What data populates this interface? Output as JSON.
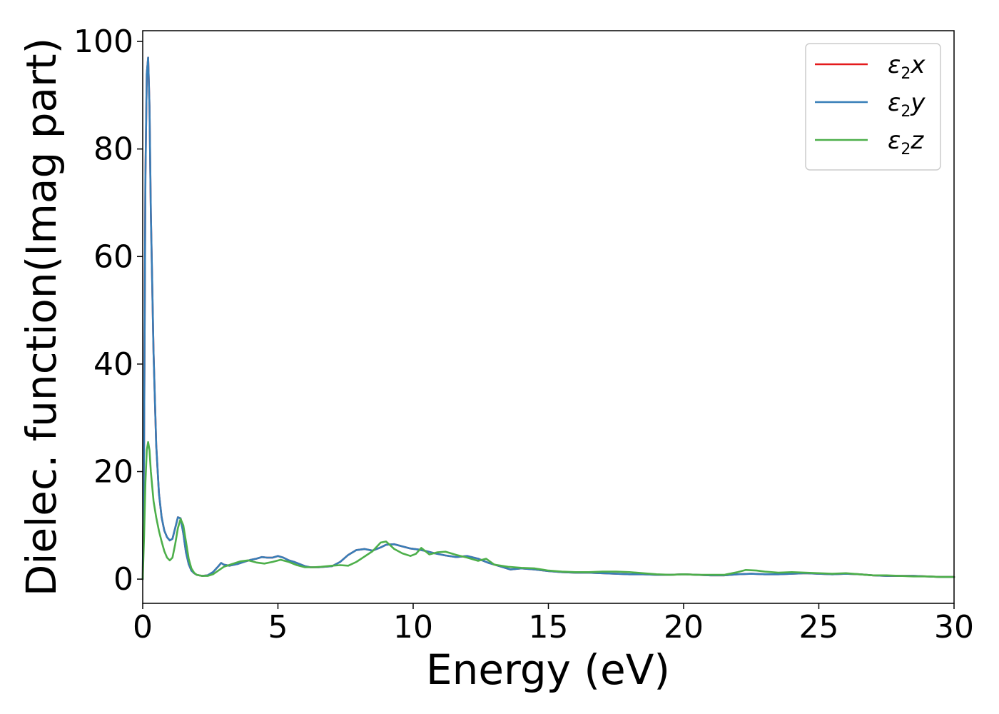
{
  "chart_data": {
    "type": "line",
    "title": "",
    "xlabel": "Energy (eV)",
    "ylabel": "Dielec. function(Imag part)",
    "xlim": [
      0,
      30
    ],
    "ylim": [
      -4.5,
      102
    ],
    "xticks": [
      0,
      5,
      10,
      15,
      20,
      25,
      30
    ],
    "yticks": [
      0,
      20,
      40,
      60,
      80,
      100
    ],
    "grid": false,
    "legend_position": "top-right",
    "series": [
      {
        "name": "ε2x",
        "legend_main": "ε",
        "legend_sub": "2",
        "legend_tail": "x",
        "color": "#e41a1c",
        "x": [
          0,
          0.05,
          0.1,
          0.15,
          0.2,
          0.25,
          0.3,
          0.4,
          0.5,
          0.6,
          0.7,
          0.8,
          0.9,
          1.0,
          1.1,
          1.2,
          1.3,
          1.4,
          1.5,
          1.6,
          1.7,
          1.8,
          1.9,
          2.0,
          2.2,
          2.4,
          2.6,
          2.8,
          2.9,
          3.0,
          3.2,
          3.5,
          3.8,
          4.0,
          4.2,
          4.4,
          4.6,
          4.8,
          5.0,
          5.2,
          5.4,
          5.6,
          5.8,
          6.0,
          6.2,
          6.5,
          7.0,
          7.3,
          7.6,
          7.9,
          8.2,
          8.5,
          8.8,
          9.0,
          9.3,
          9.6,
          9.9,
          10.2,
          10.5,
          10.8,
          11.2,
          11.6,
          12.0,
          12.4,
          12.8,
          13.2,
          13.6,
          14.0,
          14.5,
          15.0,
          15.5,
          16.0,
          16.5,
          17.0,
          17.5,
          18.0,
          18.5,
          19.0,
          19.5,
          20.0,
          20.5,
          21.0,
          21.5,
          22.0,
          22.5,
          23.0,
          23.5,
          24.0,
          24.5,
          25.0,
          25.5,
          26.0,
          26.5,
          27.0,
          27.5,
          28.0,
          28.5,
          29.0,
          29.5,
          30.0
        ],
        "y": [
          0,
          25,
          75,
          94,
          97,
          88,
          68,
          42,
          25,
          16,
          11.5,
          9,
          7.8,
          7.2,
          7.5,
          9.5,
          11.5,
          11.3,
          8.5,
          5,
          2.8,
          1.6,
          1.1,
          0.8,
          0.6,
          0.7,
          1.3,
          2.4,
          3,
          2.7,
          2.5,
          2.8,
          3.3,
          3.6,
          3.8,
          4.1,
          4.0,
          4.0,
          4.3,
          4.0,
          3.5,
          3.2,
          2.8,
          2.4,
          2.2,
          2.2,
          2.4,
          3.2,
          4.5,
          5.4,
          5.6,
          5.3,
          5.9,
          6.4,
          6.5,
          6.1,
          5.7,
          5.5,
          5.2,
          4.8,
          4.4,
          4.1,
          4.3,
          3.8,
          3.0,
          2.4,
          1.8,
          2.0,
          1.8,
          1.5,
          1.3,
          1.2,
          1.2,
          1.1,
          1.0,
          0.9,
          0.9,
          0.8,
          0.8,
          0.9,
          0.8,
          0.7,
          0.7,
          0.9,
          1.0,
          0.9,
          0.9,
          1.0,
          1.1,
          1.0,
          0.9,
          1.0,
          0.9,
          0.7,
          0.6,
          0.6,
          0.6,
          0.5,
          0.4,
          0.4
        ]
      },
      {
        "name": "ε2y",
        "legend_main": "ε",
        "legend_sub": "2",
        "legend_tail": "y",
        "color": "#377eb8",
        "x": [
          0,
          0.05,
          0.1,
          0.15,
          0.2,
          0.25,
          0.3,
          0.4,
          0.5,
          0.6,
          0.7,
          0.8,
          0.9,
          1.0,
          1.1,
          1.2,
          1.3,
          1.4,
          1.5,
          1.6,
          1.7,
          1.8,
          1.9,
          2.0,
          2.2,
          2.4,
          2.6,
          2.8,
          2.9,
          3.0,
          3.2,
          3.5,
          3.8,
          4.0,
          4.2,
          4.4,
          4.6,
          4.8,
          5.0,
          5.2,
          5.4,
          5.6,
          5.8,
          6.0,
          6.2,
          6.5,
          7.0,
          7.3,
          7.6,
          7.9,
          8.2,
          8.5,
          8.8,
          9.0,
          9.3,
          9.6,
          9.9,
          10.2,
          10.5,
          10.8,
          11.2,
          11.6,
          12.0,
          12.4,
          12.8,
          13.2,
          13.6,
          14.0,
          14.5,
          15.0,
          15.5,
          16.0,
          16.5,
          17.0,
          17.5,
          18.0,
          18.5,
          19.0,
          19.5,
          20.0,
          20.5,
          21.0,
          21.5,
          22.0,
          22.5,
          23.0,
          23.5,
          24.0,
          24.5,
          25.0,
          25.5,
          26.0,
          26.5,
          27.0,
          27.5,
          28.0,
          28.5,
          29.0,
          29.5,
          30.0
        ],
        "y": [
          0,
          25,
          75,
          94,
          97,
          88,
          68,
          42,
          25,
          16,
          11.5,
          9,
          7.8,
          7.2,
          7.5,
          9.5,
          11.5,
          11.3,
          8.5,
          5,
          2.8,
          1.6,
          1.1,
          0.8,
          0.6,
          0.7,
          1.3,
          2.4,
          3,
          2.7,
          2.5,
          2.8,
          3.3,
          3.6,
          3.8,
          4.1,
          4.0,
          4.0,
          4.3,
          4.0,
          3.5,
          3.2,
          2.8,
          2.4,
          2.2,
          2.2,
          2.4,
          3.2,
          4.5,
          5.4,
          5.6,
          5.3,
          5.9,
          6.4,
          6.5,
          6.1,
          5.7,
          5.5,
          5.2,
          4.8,
          4.4,
          4.1,
          4.3,
          3.8,
          3.0,
          2.4,
          1.8,
          2.0,
          1.8,
          1.5,
          1.3,
          1.2,
          1.2,
          1.1,
          1.0,
          0.9,
          0.9,
          0.8,
          0.8,
          0.9,
          0.8,
          0.7,
          0.7,
          0.9,
          1.0,
          0.9,
          0.9,
          1.0,
          1.1,
          1.0,
          0.9,
          1.0,
          0.9,
          0.7,
          0.6,
          0.6,
          0.6,
          0.5,
          0.4,
          0.4
        ]
      },
      {
        "name": "ε2z",
        "legend_main": "ε",
        "legend_sub": "2",
        "legend_tail": "z",
        "color": "#4daf4a",
        "x": [
          0,
          0.05,
          0.1,
          0.15,
          0.2,
          0.25,
          0.3,
          0.4,
          0.5,
          0.6,
          0.7,
          0.8,
          0.9,
          1.0,
          1.1,
          1.2,
          1.3,
          1.4,
          1.5,
          1.6,
          1.7,
          1.8,
          1.9,
          2.0,
          2.2,
          2.4,
          2.6,
          2.8,
          3.0,
          3.3,
          3.6,
          3.9,
          4.2,
          4.5,
          4.8,
          5.1,
          5.4,
          5.7,
          6.0,
          6.3,
          6.6,
          7.0,
          7.3,
          7.6,
          7.9,
          8.2,
          8.5,
          8.8,
          9.0,
          9.3,
          9.6,
          9.9,
          10.1,
          10.3,
          10.6,
          10.9,
          11.2,
          11.6,
          12.0,
          12.4,
          12.7,
          13.0,
          13.5,
          14.0,
          14.5,
          15.0,
          15.5,
          16.0,
          16.5,
          17.0,
          17.5,
          18.0,
          18.5,
          19.0,
          19.5,
          20.0,
          20.5,
          21.0,
          21.5,
          22.0,
          22.3,
          22.7,
          23.0,
          23.5,
          24.0,
          24.5,
          25.0,
          25.5,
          26.0,
          26.5,
          27.0,
          27.5,
          28.0,
          28.5,
          29.0,
          29.5,
          30.0
        ],
        "y": [
          0,
          8,
          18,
          24,
          25.5,
          24,
          20,
          14.5,
          11.5,
          9,
          7,
          5.2,
          4,
          3.5,
          4,
          6.5,
          9.5,
          11.2,
          10,
          7,
          3.8,
          2,
          1.2,
          0.8,
          0.6,
          0.6,
          0.9,
          1.6,
          2.3,
          2.8,
          3.3,
          3.5,
          3.1,
          2.9,
          3.2,
          3.6,
          3.2,
          2.6,
          2.2,
          2.2,
          2.3,
          2.5,
          2.6,
          2.5,
          3.2,
          4.2,
          5.2,
          6.8,
          7.0,
          5.6,
          4.8,
          4.3,
          4.7,
          5.8,
          4.6,
          5.0,
          5.1,
          4.5,
          4.0,
          3.4,
          3.8,
          2.7,
          2.3,
          2.1,
          2.0,
          1.6,
          1.4,
          1.3,
          1.3,
          1.4,
          1.4,
          1.3,
          1.1,
          0.9,
          0.8,
          0.9,
          0.8,
          0.8,
          0.8,
          1.3,
          1.7,
          1.6,
          1.4,
          1.2,
          1.3,
          1.2,
          1.1,
          1.0,
          1.1,
          0.9,
          0.7,
          0.7,
          0.6,
          0.5,
          0.5,
          0.4,
          0.4
        ]
      }
    ]
  }
}
